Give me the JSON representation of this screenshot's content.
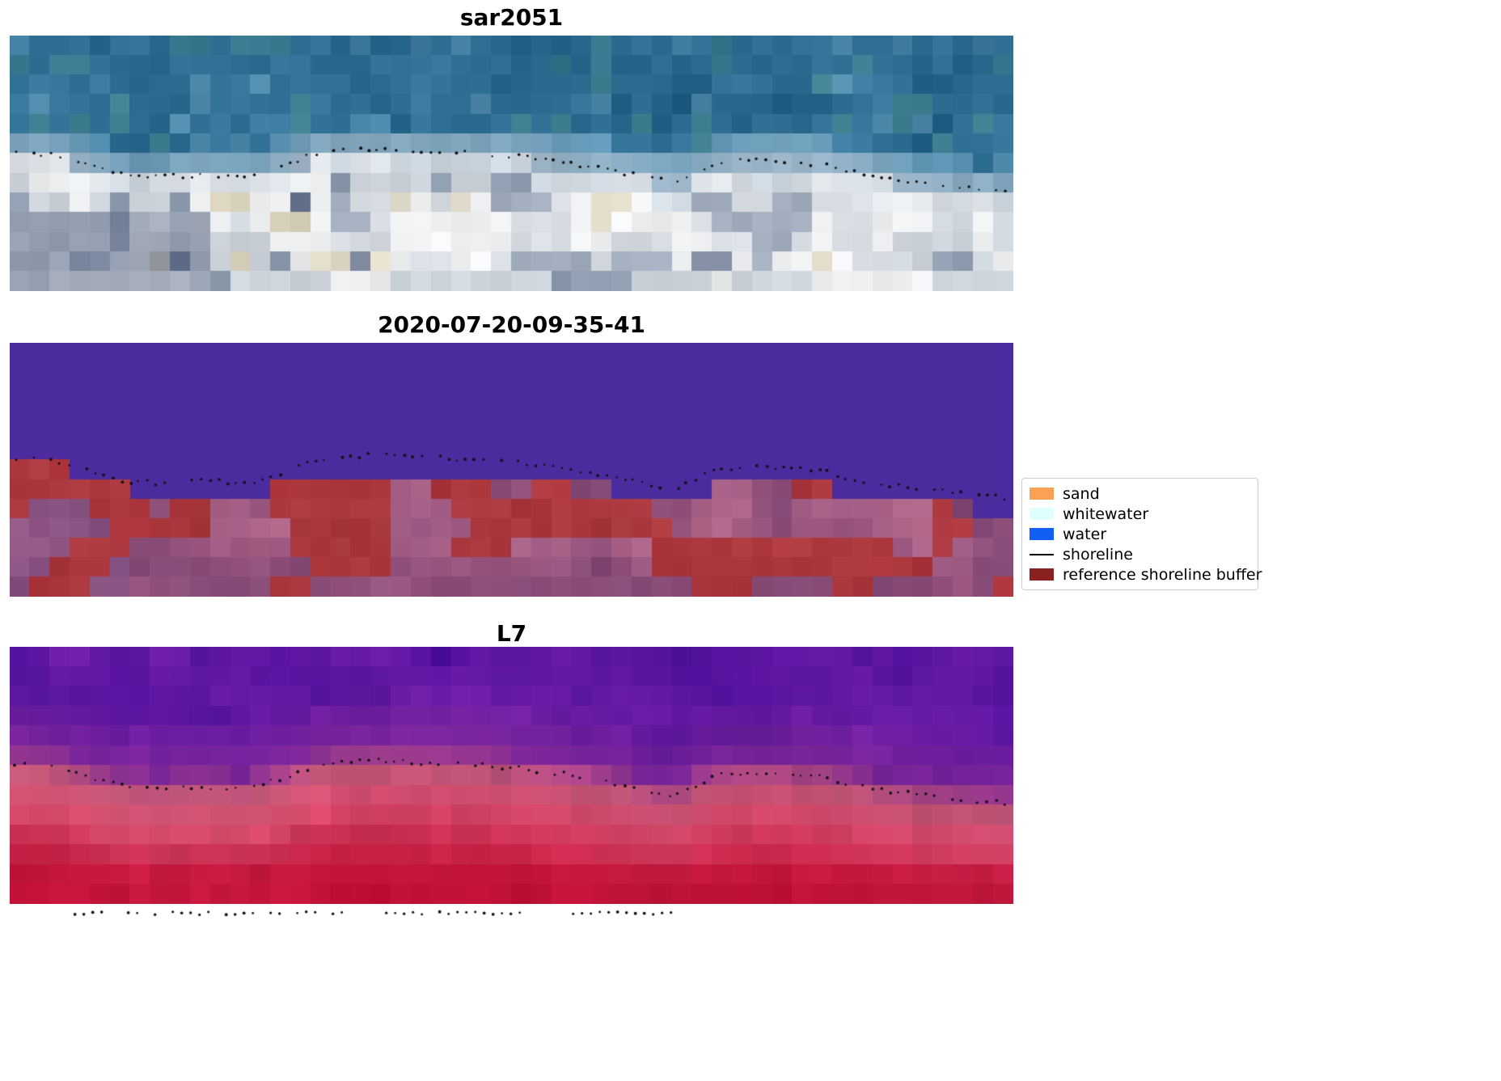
{
  "figure": {
    "background": "#ffffff",
    "panels": [
      {
        "title": "sar2051"
      },
      {
        "title": "2020-07-20-09-35-41"
      },
      {
        "title": "L7"
      }
    ],
    "legend": {
      "items": [
        {
          "label": "sand",
          "type": "patch",
          "color": "#fba155"
        },
        {
          "label": "whitewater",
          "type": "patch",
          "color": "#e0ffff"
        },
        {
          "label": "water",
          "type": "patch",
          "color": "#115ff5"
        },
        {
          "label": "shoreline",
          "type": "line",
          "color": "#000000"
        },
        {
          "label": "reference shoreline buffer",
          "type": "patch",
          "color": "#8a2121"
        }
      ]
    }
  },
  "chart_data": {
    "type": "image-panels",
    "title": "Shoreline detection figure with satellite image, classified image and false-color image",
    "panels": [
      {
        "title": "sar2051",
        "kind": "rgb-satellite-image",
        "content": "teal-blue water above dotted shoreline, bright white/gray/tan sand below",
        "palette": {
          "water_dark": "#1f5d82",
          "water_mid": "#3c7da1",
          "water_green": "#4d8d92",
          "water_light": "#6fa3c0",
          "transition": "#9fb4c6",
          "sand_bright": "#eceef0",
          "sand_light": "#cdd4db",
          "sand_gray": "#8e9cb0",
          "sand_tan": "#d9d2bd",
          "sand_slate": "#66738e"
        }
      },
      {
        "title": "2020-07-20-09-35-41",
        "kind": "classified-image",
        "content": "flat purple water class above stepped boundary, brick-red reference shoreline buffer patches over mauve below",
        "palette": {
          "water": "#4b2b9d",
          "buffer_red": "#b23b41",
          "buffer_red_dark": "#9e3138",
          "mauve_light": "#b4688c",
          "mauve_mid": "#96517e",
          "mauve_dark": "#7e4673"
        }
      },
      {
        "title": "L7",
        "kind": "false-color-image",
        "content": "purple water grading through pink band at shoreline into deep crimson sand",
        "palette": {
          "purple_dark": "#4e0f9a",
          "purple_mid": "#6b1daa",
          "magenta": "#8c2f96",
          "pink": "#c05577",
          "red_light": "#d4496a",
          "red_mid": "#c72347",
          "red_deep": "#c00e36"
        }
      }
    ],
    "shoreline_points": [
      [
        0.0,
        0.455
      ],
      [
        0.025,
        0.46
      ],
      [
        0.055,
        0.475
      ],
      [
        0.09,
        0.52
      ],
      [
        0.115,
        0.545
      ],
      [
        0.15,
        0.552
      ],
      [
        0.195,
        0.545
      ],
      [
        0.24,
        0.552
      ],
      [
        0.265,
        0.52
      ],
      [
        0.3,
        0.47
      ],
      [
        0.33,
        0.45
      ],
      [
        0.365,
        0.442
      ],
      [
        0.42,
        0.452
      ],
      [
        0.47,
        0.46
      ],
      [
        0.52,
        0.478
      ],
      [
        0.56,
        0.5
      ],
      [
        0.6,
        0.528
      ],
      [
        0.63,
        0.552
      ],
      [
        0.658,
        0.575
      ],
      [
        0.675,
        0.558
      ],
      [
        0.695,
        0.515
      ],
      [
        0.715,
        0.495
      ],
      [
        0.745,
        0.488
      ],
      [
        0.775,
        0.495
      ],
      [
        0.81,
        0.505
      ],
      [
        0.845,
        0.54
      ],
      [
        0.88,
        0.562
      ],
      [
        0.915,
        0.578
      ],
      [
        0.955,
        0.595
      ],
      [
        1.0,
        0.612
      ]
    ],
    "legend_entries": [
      "sand",
      "whitewater",
      "water",
      "shoreline",
      "reference shoreline buffer"
    ]
  }
}
